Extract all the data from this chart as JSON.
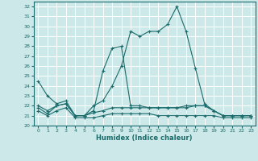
{
  "xlabel": "Humidex (Indice chaleur)",
  "bg_color": "#cde8e8",
  "grid_color": "#b8d4d4",
  "line_color": "#1a6b6b",
  "xlim": [
    -0.5,
    23.5
  ],
  "ylim": [
    20.0,
    32.5
  ],
  "yticks": [
    20,
    21,
    22,
    23,
    24,
    25,
    26,
    27,
    28,
    29,
    30,
    31,
    32
  ],
  "xticks": [
    0,
    1,
    2,
    3,
    4,
    5,
    6,
    7,
    8,
    9,
    10,
    11,
    12,
    13,
    14,
    15,
    16,
    17,
    18,
    19,
    20,
    21,
    22,
    23
  ],
  "series": [
    {
      "x": [
        0,
        1,
        2,
        3,
        4,
        5,
        6,
        7,
        8,
        9,
        10,
        11,
        12,
        13,
        14,
        15,
        16,
        17,
        18,
        19,
        20,
        21,
        22,
        23
      ],
      "y": [
        24.5,
        23.0,
        22.2,
        22.5,
        21.0,
        21.0,
        22.0,
        22.5,
        24.0,
        26.0,
        29.5,
        29.0,
        29.5,
        29.5,
        30.2,
        32.0,
        29.5,
        25.8,
        22.2,
        21.5,
        21.0,
        21.0,
        21.0,
        21.0
      ]
    },
    {
      "x": [
        0,
        1,
        2,
        3,
        4,
        5,
        6,
        7,
        8,
        9,
        10,
        11,
        12,
        13,
        14,
        15,
        16,
        17,
        18,
        19,
        20,
        21,
        22,
        23
      ],
      "y": [
        22.0,
        21.5,
        22.0,
        22.2,
        21.0,
        21.0,
        21.5,
        25.5,
        27.8,
        28.0,
        22.0,
        22.0,
        21.8,
        21.8,
        21.8,
        21.8,
        21.8,
        22.0,
        22.0,
        21.5,
        21.0,
        21.0,
        21.0,
        21.0
      ]
    },
    {
      "x": [
        0,
        1,
        2,
        3,
        4,
        5,
        6,
        7,
        8,
        9,
        10,
        11,
        12,
        13,
        14,
        15,
        16,
        17,
        18,
        19,
        20,
        21,
        22,
        23
      ],
      "y": [
        21.8,
        21.2,
        22.0,
        22.2,
        21.0,
        21.0,
        21.3,
        21.5,
        21.8,
        21.8,
        21.8,
        21.8,
        21.8,
        21.8,
        21.8,
        21.8,
        22.0,
        22.0,
        22.0,
        21.5,
        21.0,
        21.0,
        21.0,
        21.0
      ]
    },
    {
      "x": [
        0,
        1,
        2,
        3,
        4,
        5,
        6,
        7,
        8,
        9,
        10,
        11,
        12,
        13,
        14,
        15,
        16,
        17,
        18,
        19,
        20,
        21,
        22,
        23
      ],
      "y": [
        21.5,
        21.0,
        21.5,
        21.8,
        20.8,
        20.8,
        20.8,
        21.0,
        21.2,
        21.2,
        21.2,
        21.2,
        21.2,
        21.0,
        21.0,
        21.0,
        21.0,
        21.0,
        21.0,
        21.0,
        20.8,
        20.8,
        20.8,
        20.8
      ]
    }
  ]
}
